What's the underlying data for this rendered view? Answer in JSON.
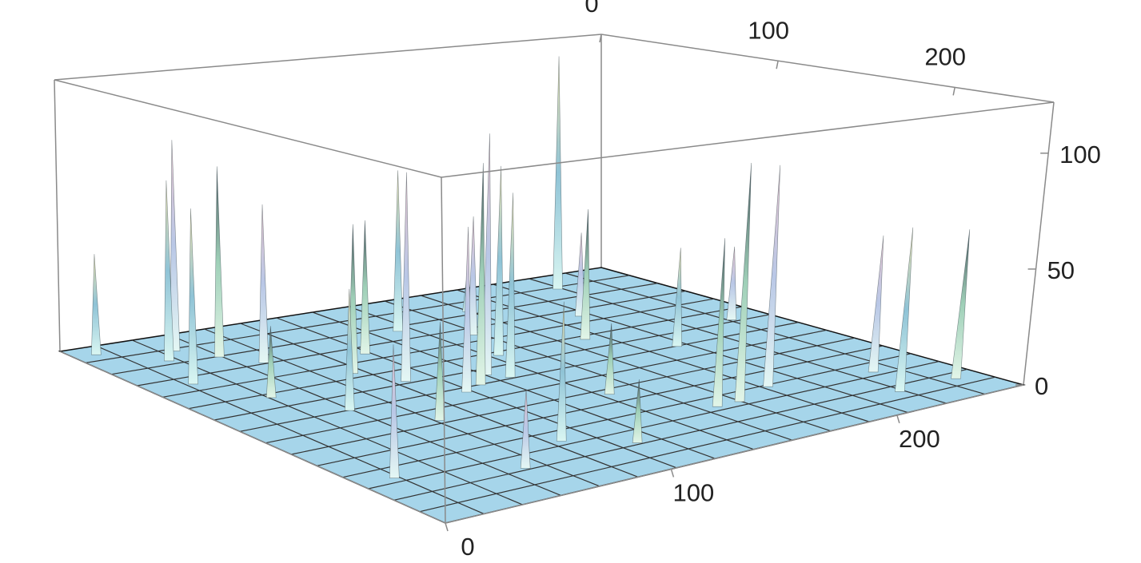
{
  "chart_data": {
    "type": "surface3d",
    "xlim": [
      0,
      256
    ],
    "ylim": [
      0,
      256
    ],
    "zlim": [
      0,
      122
    ],
    "xticks": [
      0,
      100,
      200
    ],
    "yticks": [
      0,
      100,
      200
    ],
    "zticks": [
      0,
      50,
      100
    ],
    "mesh": 15,
    "floor_color": "#a6d5ea",
    "box_color": "#8a8a8a",
    "spikes": {
      "x": [
        220,
        120,
        110,
        125,
        100,
        170,
        30,
        40,
        50,
        20,
        60,
        80,
        130,
        150,
        180,
        200,
        230,
        245,
        220,
        190,
        160,
        10,
        15,
        70,
        90,
        60,
        140,
        170,
        240,
        110,
        50,
        200,
        100,
        140,
        90,
        35
      ],
      "y": [
        20,
        110,
        120,
        118,
        125,
        200,
        30,
        20,
        35,
        60,
        50,
        80,
        40,
        60,
        90,
        120,
        200,
        230,
        230,
        190,
        200,
        10,
        200,
        150,
        200,
        220,
        160,
        30,
        100,
        220,
        120,
        60,
        60,
        90,
        100,
        90
      ],
      "z": [
        117,
        105,
        95,
        80,
        70,
        100,
        80,
        95,
        85,
        75,
        70,
        65,
        75,
        55,
        60,
        45,
        60,
        65,
        70,
        95,
        70,
        45,
        50,
        40,
        55,
        30,
        30,
        20,
        35,
        25,
        50,
        40,
        60,
        85,
        90,
        30
      ]
    }
  }
}
